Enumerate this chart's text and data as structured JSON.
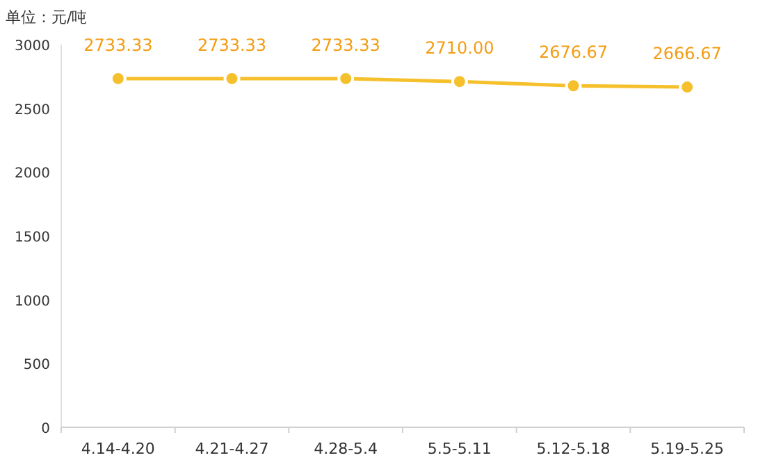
{
  "chart_data": {
    "type": "line",
    "ylabel": "单位：元/吨",
    "categories": [
      "4.14-4.20",
      "4.21-4.27",
      "4.28-5.4",
      "5.5-5.11",
      "5.12-5.18",
      "5.19-5.25"
    ],
    "series": [
      {
        "color": "#f5c02c",
        "values": [
          2733.33,
          2733.33,
          2733.33,
          2710.0,
          2676.67,
          2666.67
        ],
        "value_labels": [
          "2733.33",
          "2733.33",
          "2733.33",
          "2710.00",
          "2676.67",
          "2666.67"
        ]
      }
    ],
    "ylim": [
      0,
      3000
    ],
    "yticks": [
      0,
      500,
      1000,
      1500,
      2000,
      2500,
      3000
    ],
    "marker": "circle",
    "grid": false
  }
}
